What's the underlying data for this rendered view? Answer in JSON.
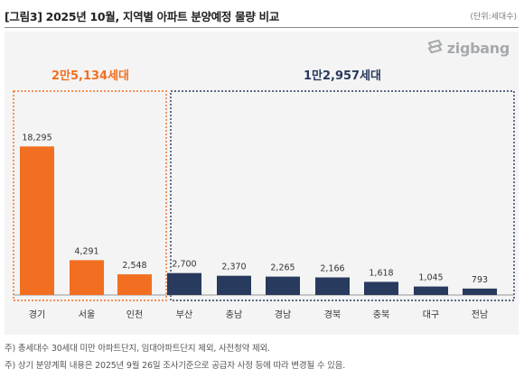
{
  "header": {
    "title": "[그림3] 2025년 10월, 지역별 아파트 분양예정 물량 비교",
    "unit": "(단위:세대수)"
  },
  "logo": {
    "text": "zigbang"
  },
  "groups": [
    {
      "label": "2만5,134세대",
      "color": "#f26f21"
    },
    {
      "label": "1만2,957세대",
      "color": "#283a5e"
    }
  ],
  "chart_data": {
    "type": "bar",
    "categories": [
      "경기",
      "서울",
      "인천",
      "부산",
      "충남",
      "경남",
      "경북",
      "충북",
      "대구",
      "전남"
    ],
    "values": [
      18295,
      4291,
      2548,
      2700,
      2370,
      2265,
      2166,
      1618,
      1045,
      793
    ],
    "value_labels": [
      "18,295",
      "4,291",
      "2,548",
      "2,700",
      "2,370",
      "2,265",
      "2,166",
      "1,618",
      "1,045",
      "793"
    ],
    "bar_colors": [
      "#f26f21",
      "#f26f21",
      "#f26f21",
      "#283a5e",
      "#283a5e",
      "#283a5e",
      "#283a5e",
      "#283a5e",
      "#283a5e",
      "#283a5e"
    ],
    "group_of_bar": [
      0,
      0,
      0,
      1,
      1,
      1,
      1,
      1,
      1,
      1
    ],
    "title": "",
    "xlabel": "",
    "ylabel": "",
    "ylim": [
      0,
      20000
    ],
    "grid": false,
    "legend": "none"
  },
  "notes": [
    "주) 총세대수 30세대 미만 아파트단지, 임대아파트단지 제외, 사전청약 제외.",
    "주) 상기 분양계획 내용은 2025년 9월 26일 조사기준으로 공급자 사정 등에 따라 변경될 수 있음."
  ]
}
